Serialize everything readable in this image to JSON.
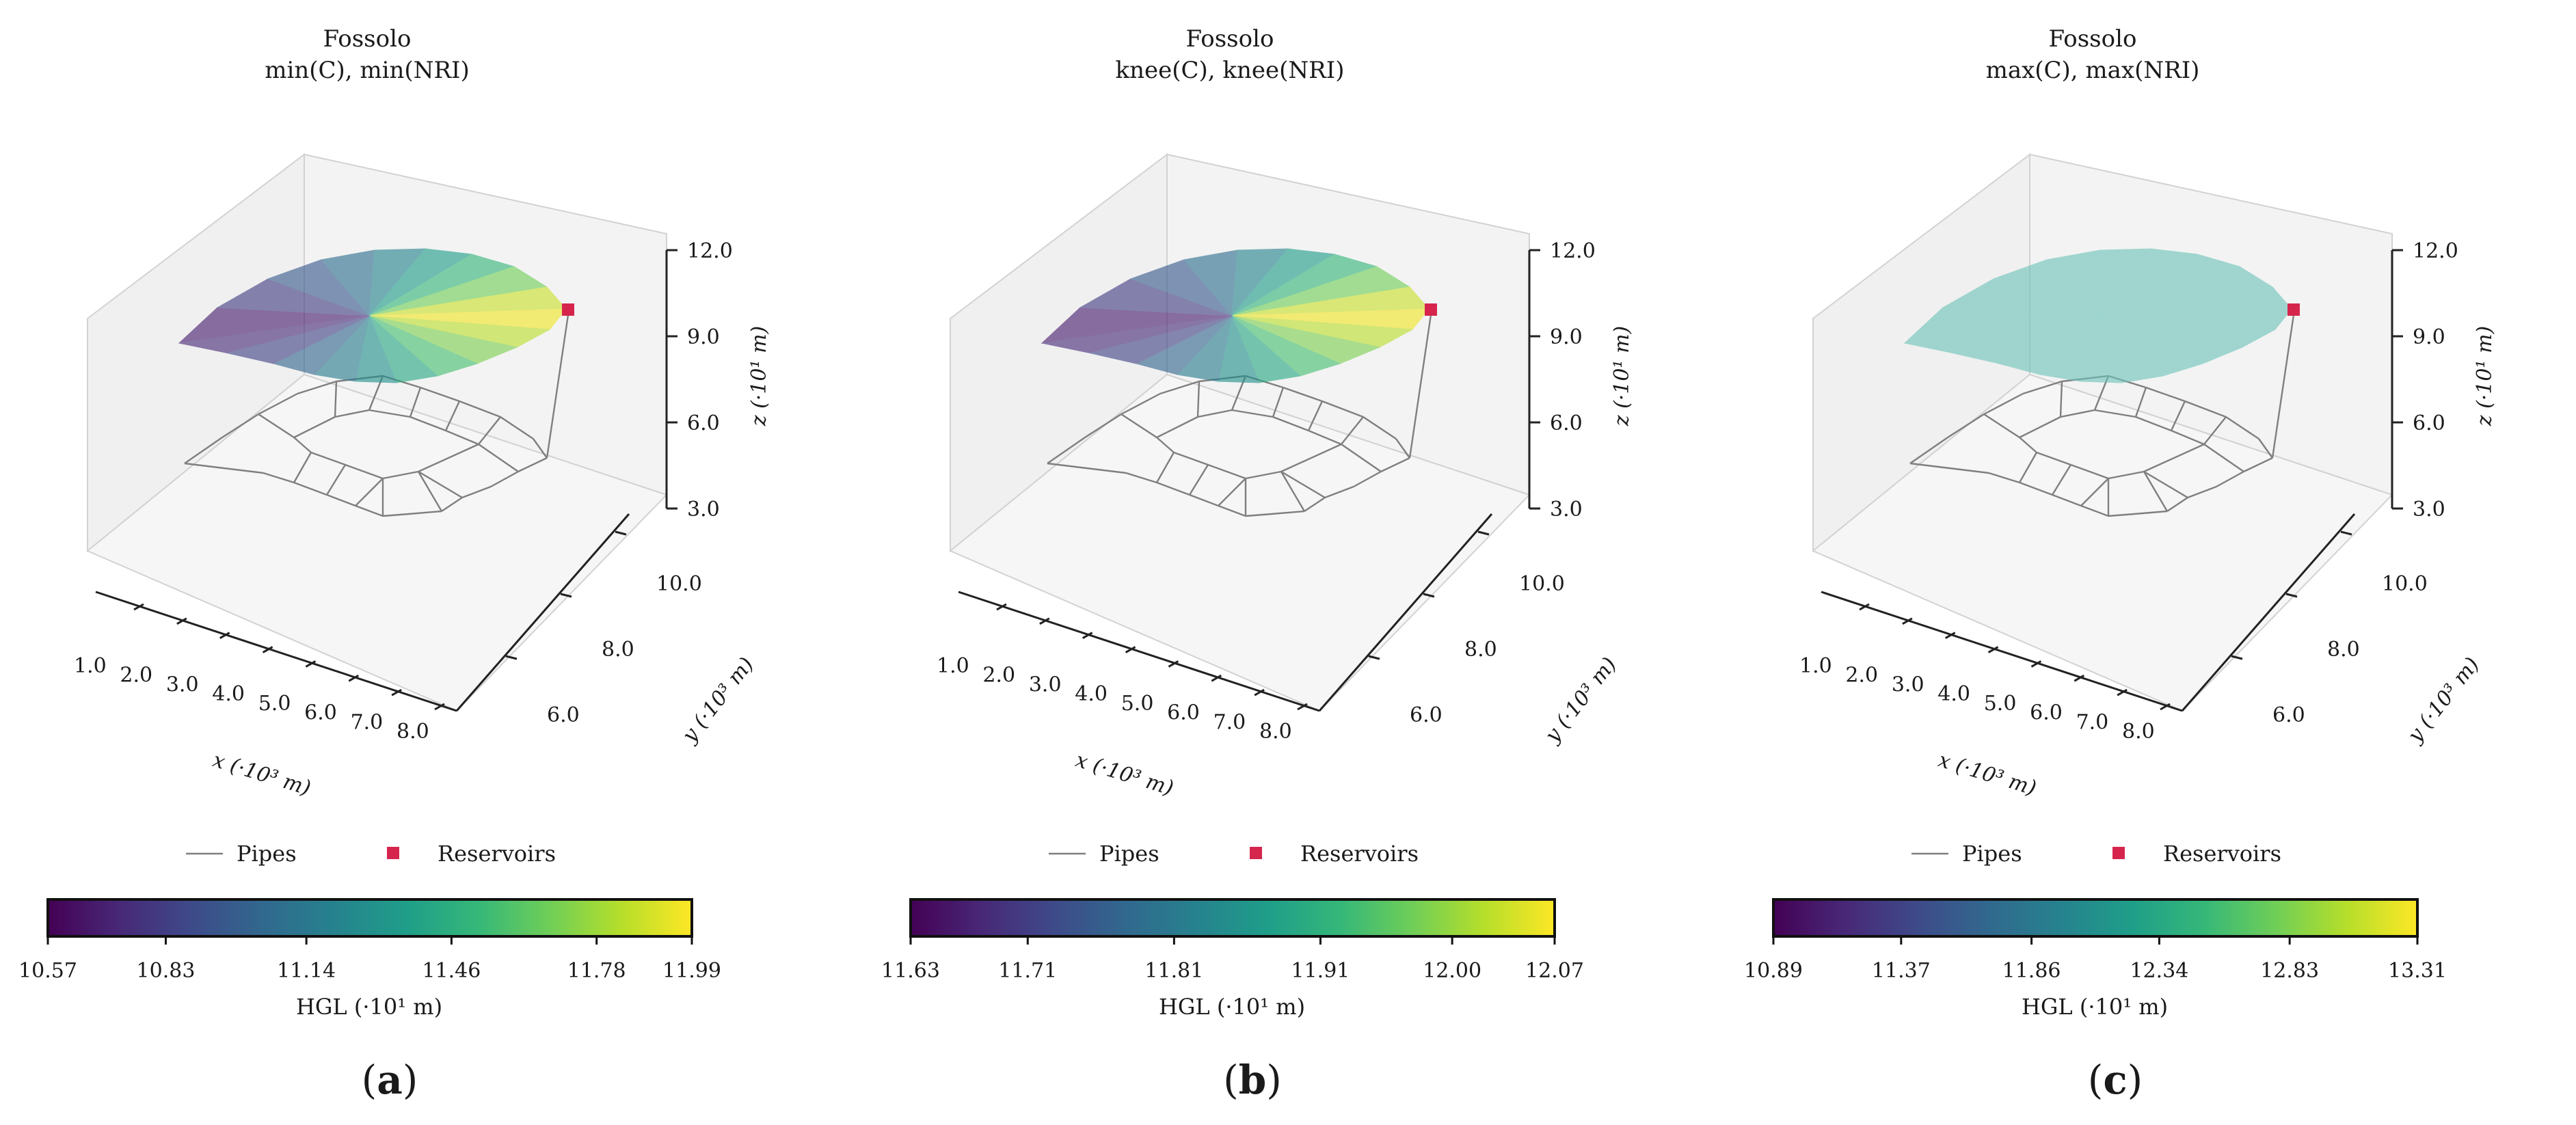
{
  "colormap": [
    "#440154",
    "#482878",
    "#3e4a89",
    "#31688e",
    "#26828e",
    "#1f9e89",
    "#35b779",
    "#6ece58",
    "#b5de2b",
    "#fde725"
  ],
  "colors": {
    "pipe": "#7f7f7f",
    "reservoir": "#d6254d",
    "pane": "#f0f0f0",
    "pane_edge": "#d2d2d2",
    "uniform_surface": "#6cc3b9"
  },
  "legend": {
    "pipes_label": "Pipes",
    "reservoirs_label": "Reservoirs"
  },
  "axis_labels": {
    "x": "x (·10³ m)",
    "y": "y (·10³ m)",
    "z": "z (·10¹ m)",
    "colorbar": "HGL (·10¹ m)"
  },
  "chart_data": [
    {
      "type": "surface3d",
      "panel_label": "(a)",
      "panel_letter": "a",
      "title": "Fossolo",
      "subtitle": "min(C), min(NRI)",
      "x_ticks": [
        "1.0",
        "2.0",
        "3.0",
        "4.0",
        "5.0",
        "6.0",
        "7.0",
        "8.0"
      ],
      "y_ticks": [
        "6.0",
        "8.0",
        "10.0"
      ],
      "z_ticks": [
        "3.0",
        "6.0",
        "9.0",
        "12.0"
      ],
      "zlim": [
        3.0,
        12.0
      ],
      "surface_color": "gradient",
      "colorbar": {
        "min": 10.57,
        "max": 11.99,
        "ticks": [
          "10.57",
          "10.83",
          "11.14",
          "11.46",
          "11.78",
          "11.99"
        ]
      }
    },
    {
      "type": "surface3d",
      "panel_label": "(b)",
      "panel_letter": "b",
      "title": "Fossolo",
      "subtitle": "knee(C), knee(NRI)",
      "x_ticks": [
        "1.0",
        "2.0",
        "3.0",
        "4.0",
        "5.0",
        "6.0",
        "7.0",
        "8.0"
      ],
      "y_ticks": [
        "6.0",
        "8.0",
        "10.0"
      ],
      "z_ticks": [
        "3.0",
        "6.0",
        "9.0",
        "12.0"
      ],
      "zlim": [
        3.0,
        12.0
      ],
      "surface_color": "gradient",
      "colorbar": {
        "min": 11.63,
        "max": 12.07,
        "ticks": [
          "11.63",
          "11.71",
          "11.81",
          "11.91",
          "12.00",
          "12.07"
        ]
      }
    },
    {
      "type": "surface3d",
      "panel_label": "(c)",
      "panel_letter": "c",
      "title": "Fossolo",
      "subtitle": "max(C), max(NRI)",
      "x_ticks": [
        "1.0",
        "2.0",
        "3.0",
        "4.0",
        "5.0",
        "6.0",
        "7.0",
        "8.0"
      ],
      "y_ticks": [
        "6.0",
        "8.0",
        "10.0"
      ],
      "z_ticks": [
        "3.0",
        "6.0",
        "9.0",
        "12.0"
      ],
      "zlim": [
        3.0,
        12.0
      ],
      "surface_color": "uniform",
      "colorbar": {
        "min": 10.89,
        "max": 13.31,
        "ticks": [
          "10.89",
          "11.37",
          "11.86",
          "12.34",
          "12.83",
          "13.31"
        ]
      }
    }
  ]
}
